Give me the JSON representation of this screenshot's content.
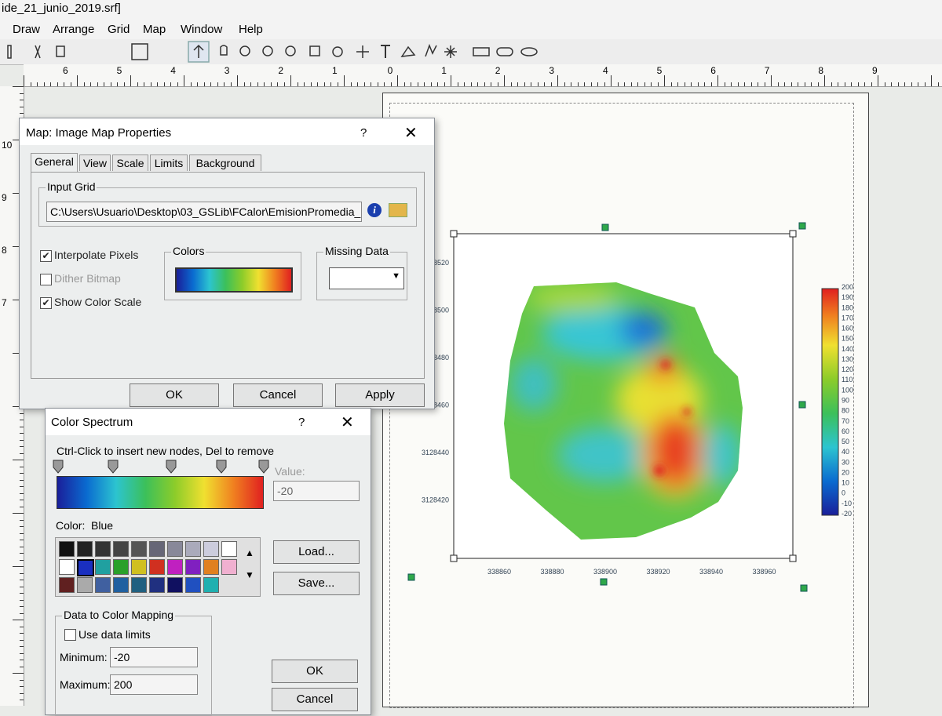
{
  "window": {
    "title": "ide_21_junio_2019.srf]",
    "menu": [
      "Draw",
      "Arrange",
      "Grid",
      "Map",
      "Window",
      "Help"
    ]
  },
  "ruler": {
    "horizontal": [
      "6",
      "5",
      "4",
      "3",
      "2",
      "1",
      "0",
      "1",
      "2",
      "3",
      "4",
      "5",
      "6",
      "7",
      "8",
      "9"
    ],
    "vertical": [
      "10",
      "9",
      "8",
      "7"
    ]
  },
  "image_map_dialog": {
    "title": "Map: Image Map Properties",
    "help": "?",
    "tabs": [
      "General",
      "View",
      "Scale",
      "Limits",
      "Background"
    ],
    "input_grid_label": "Input Grid",
    "input_grid_path": "C:\\Users\\Usuario\\Desktop\\03_GSLib\\FCalor\\EmisionPromedia_",
    "checkboxes": [
      "Interpolate Pixels",
      "Dither Bitmap",
      "Show Color Scale"
    ],
    "colors_label": "Colors",
    "missing_data_label": "Missing Data",
    "buttons": [
      "OK",
      "Cancel",
      "Apply"
    ]
  },
  "color_spectrum_dialog": {
    "title": "Color Spectrum",
    "help": "?",
    "hint": "Ctrl-Click to insert new nodes, Del to remove",
    "value_label": "Value:",
    "value": "-20",
    "color_label": "Color:",
    "color_name": "Blue",
    "buttons_side": [
      "Load...",
      "Save..."
    ],
    "mapping_label": "Data to Color Mapping",
    "use_data_limits": "Use data limits",
    "minimum_label": "Minimum:",
    "minimum": "-20",
    "maximum_label": "Maximum:",
    "maximum": "200",
    "buttons_bottom": [
      "OK",
      "Cancel"
    ]
  },
  "map": {
    "y_labels": [
      "28520",
      "28500",
      "3128480",
      "3128460",
      "3128440",
      "3128420"
    ],
    "x_labels": [
      "338860",
      "338880",
      "338900",
      "338920",
      "338940",
      "338960"
    ],
    "color_scale_labels": [
      "200",
      "190",
      "180",
      "170",
      "160",
      "150",
      "140",
      "130",
      "120",
      "110",
      "100",
      "90",
      "80",
      "70",
      "60",
      "50",
      "40",
      "30",
      "20",
      "10",
      "0",
      "-10",
      "-20"
    ]
  }
}
